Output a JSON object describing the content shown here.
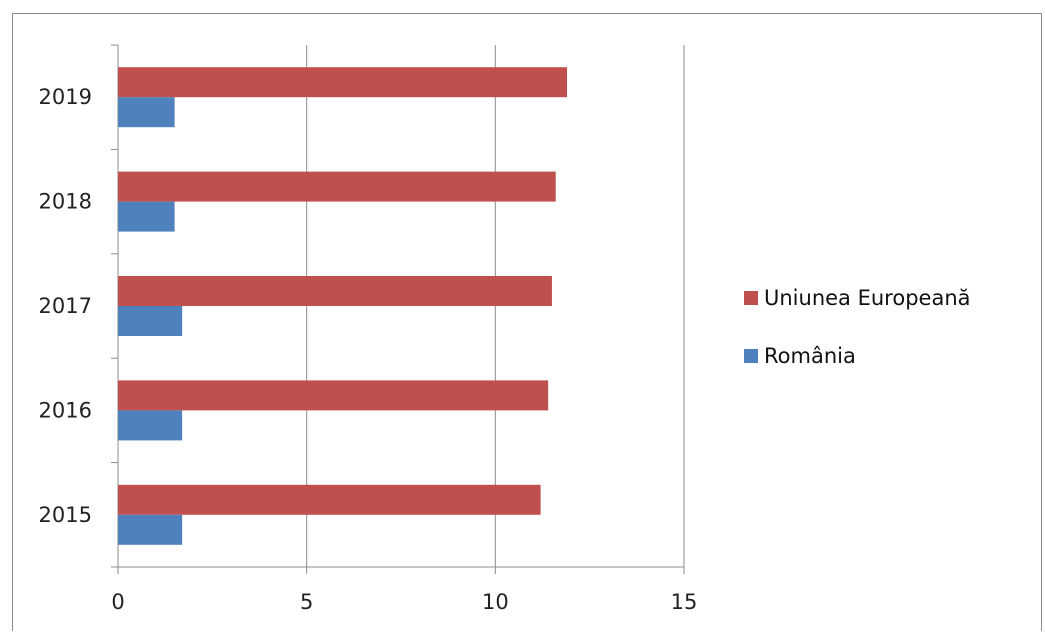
{
  "chart_data": {
    "type": "bar",
    "orientation": "horizontal",
    "categories": [
      "2015",
      "2016",
      "2017",
      "2018",
      "2019"
    ],
    "series": [
      {
        "name": "Uniunea Europeană",
        "color": "#c0504d",
        "values": [
          11.2,
          11.4,
          11.5,
          11.6,
          11.9
        ]
      },
      {
        "name": "România",
        "color": "#4f81bd",
        "values": [
          1.7,
          1.7,
          1.7,
          1.5,
          1.5
        ]
      }
    ],
    "x_ticks": [
      "0",
      "5",
      "10",
      "15"
    ],
    "xlim": [
      0,
      15
    ],
    "grid": "vertical",
    "legend_position": "right"
  }
}
